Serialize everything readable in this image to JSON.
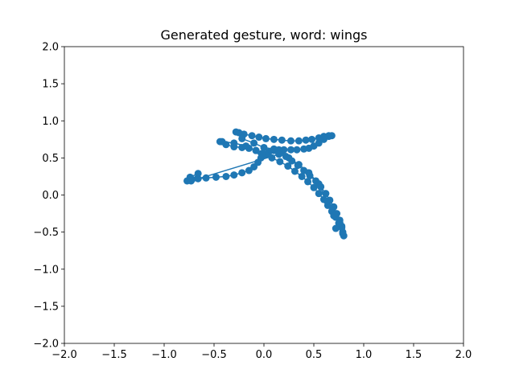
{
  "chart_data": {
    "type": "scatter",
    "title": "Generated gesture, word: wings",
    "xlabel": "",
    "ylabel": "",
    "xlim": [
      -2.0,
      2.0
    ],
    "ylim": [
      -2.0,
      2.0
    ],
    "xticks": [
      "−2.0",
      "−1.5",
      "−1.0",
      "−0.5",
      "0.0",
      "0.5",
      "1.0",
      "1.5",
      "2.0"
    ],
    "yticks": [
      "−2.0",
      "−1.5",
      "−1.0",
      "−0.5",
      "0.0",
      "0.5",
      "1.0",
      "1.5",
      "2.0"
    ],
    "grid": false,
    "legend": "none",
    "color": "#1f77b4",
    "series": [
      {
        "points": [
          [
            0.0,
            0.55
          ],
          [
            0.05,
            0.58
          ],
          [
            0.1,
            0.6
          ],
          [
            0.15,
            0.61
          ],
          [
            0.2,
            0.61
          ],
          [
            0.27,
            0.61
          ],
          [
            0.33,
            0.61
          ],
          [
            0.4,
            0.62
          ],
          [
            0.45,
            0.63
          ],
          [
            0.5,
            0.66
          ],
          [
            0.55,
            0.7
          ],
          [
            0.6,
            0.75
          ],
          [
            0.65,
            0.79
          ],
          [
            0.68,
            0.8
          ],
          [
            0.65,
            0.8
          ],
          [
            0.6,
            0.79
          ],
          [
            0.55,
            0.77
          ],
          [
            0.48,
            0.75
          ],
          [
            0.42,
            0.74
          ],
          [
            0.35,
            0.73
          ],
          [
            0.27,
            0.73
          ],
          [
            0.18,
            0.74
          ],
          [
            0.1,
            0.75
          ],
          [
            0.02,
            0.76
          ],
          [
            -0.05,
            0.78
          ],
          [
            -0.12,
            0.8
          ],
          [
            -0.2,
            0.82
          ],
          [
            -0.25,
            0.84
          ],
          [
            -0.28,
            0.85
          ],
          [
            -0.22,
            0.76
          ],
          [
            -0.1,
            0.7
          ],
          [
            0.0,
            0.64
          ],
          [
            0.1,
            0.62
          ],
          [
            0.17,
            0.58
          ],
          [
            0.22,
            0.52
          ],
          [
            0.28,
            0.46
          ],
          [
            0.34,
            0.4
          ],
          [
            0.4,
            0.33
          ],
          [
            0.46,
            0.26
          ],
          [
            0.52,
            0.19
          ],
          [
            0.57,
            0.11
          ],
          [
            0.62,
            0.02
          ],
          [
            0.66,
            -0.07
          ],
          [
            0.7,
            -0.16
          ],
          [
            0.73,
            -0.25
          ],
          [
            0.76,
            -0.34
          ],
          [
            0.78,
            -0.42
          ],
          [
            0.79,
            -0.5
          ],
          [
            0.8,
            -0.55
          ],
          [
            0.79,
            -0.52
          ],
          [
            0.78,
            -0.44
          ],
          [
            0.76,
            -0.37
          ],
          [
            0.72,
            -0.3
          ],
          [
            0.68,
            -0.22
          ],
          [
            0.64,
            -0.14
          ],
          [
            0.6,
            -0.06
          ],
          [
            0.55,
            0.02
          ],
          [
            0.5,
            0.1
          ],
          [
            0.44,
            0.18
          ],
          [
            0.38,
            0.25
          ],
          [
            0.31,
            0.32
          ],
          [
            0.24,
            0.39
          ],
          [
            0.16,
            0.45
          ],
          [
            0.08,
            0.5
          ],
          [
            0.02,
            0.54
          ],
          [
            -0.02,
            0.56
          ],
          [
            -0.08,
            0.6
          ],
          [
            -0.15,
            0.63
          ],
          [
            -0.22,
            0.64
          ],
          [
            -0.3,
            0.65
          ],
          [
            -0.38,
            0.68
          ],
          [
            -0.44,
            0.72
          ],
          [
            -0.42,
            0.72
          ],
          [
            -0.3,
            0.7
          ],
          [
            -0.18,
            0.66
          ],
          [
            -0.08,
            0.6
          ],
          [
            -0.03,
            0.5
          ],
          [
            -0.06,
            0.44
          ],
          [
            -0.1,
            0.38
          ],
          [
            -0.15,
            0.33
          ],
          [
            -0.22,
            0.3
          ],
          [
            -0.3,
            0.27
          ],
          [
            -0.38,
            0.25
          ],
          [
            -0.48,
            0.24
          ],
          [
            -0.58,
            0.23
          ],
          [
            -0.66,
            0.22
          ],
          [
            -0.72,
            0.21
          ],
          [
            -0.77,
            0.19
          ],
          [
            -0.74,
            0.24
          ],
          [
            -0.66,
            0.29
          ],
          [
            -0.73,
            0.19
          ],
          [
            0.15,
            0.55
          ],
          [
            0.25,
            0.5
          ],
          [
            0.35,
            0.41
          ],
          [
            0.45,
            0.3
          ],
          [
            0.55,
            0.15
          ],
          [
            0.63,
            -0.08
          ],
          [
            0.7,
            -0.28
          ],
          [
            0.75,
            -0.38
          ],
          [
            0.72,
            -0.45
          ]
        ]
      }
    ]
  }
}
